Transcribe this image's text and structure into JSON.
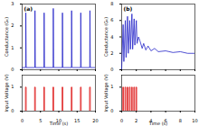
{
  "chart_data": [
    {
      "type": "line",
      "title": "(a)",
      "y_label": "Conductance (G₀)",
      "color": "#2323c8",
      "tick_labels": "y",
      "x": [
        0,
        0.95,
        1,
        1.1,
        3.45,
        3.5,
        3.6,
        5.95,
        6,
        6.1,
        8.45,
        8.5,
        8.6,
        10.95,
        11,
        11.1,
        13.45,
        13.5,
        13.6,
        15.95,
        16,
        16.1,
        18.45,
        18.5,
        18.6,
        20
      ],
      "values": [
        0.1,
        0.1,
        2.6,
        0.1,
        0.1,
        2.7,
        0.1,
        0.1,
        2.6,
        0.1,
        0.1,
        2.8,
        0.1,
        0.1,
        2.6,
        0.1,
        0.1,
        2.7,
        0.1,
        0.1,
        2.6,
        0.1,
        0.1,
        2.7,
        0.1,
        0.1
      ],
      "xlim": [
        0,
        20
      ],
      "xticks": [
        0,
        5,
        10,
        15,
        20
      ],
      "ylim": [
        0,
        3
      ],
      "yticks": [
        0,
        1,
        2,
        3
      ]
    },
    {
      "type": "line",
      "x_label": "Time (s)",
      "y_label": "Input Voltage (V)",
      "color": "#dd1111",
      "line_style": "step",
      "x": [
        0,
        0.9,
        1.1,
        3.4,
        3.6,
        5.9,
        6.1,
        8.4,
        8.6,
        10.9,
        11.1,
        13.4,
        13.6,
        15.9,
        16.1,
        18.4,
        18.6,
        20
      ],
      "values": [
        0,
        1,
        0,
        1,
        0,
        1,
        0,
        1,
        0,
        1,
        0,
        1,
        0,
        1,
        0,
        1,
        0,
        0
      ],
      "xlim": [
        0,
        20
      ],
      "xticks": [
        0,
        5,
        10,
        15,
        20
      ],
      "ylim": [
        0,
        1.5
      ],
      "yticks": [
        0,
        1
      ]
    },
    {
      "type": "line",
      "title": "(b)",
      "y_label": "Conductance (G₀)",
      "color": "#2323c8",
      "tick_labels": "y",
      "x": [
        0,
        0.2,
        0.3,
        0.5,
        0.6,
        0.8,
        0.9,
        1.1,
        1.2,
        1.4,
        1.5,
        1.7,
        1.8,
        2.0,
        2.1,
        2.3,
        2.5,
        2.8,
        3.0,
        3.3,
        3.6,
        4,
        4.5,
        5,
        6,
        7,
        8,
        9,
        10
      ],
      "values": [
        0.1,
        5.5,
        1,
        6,
        1.5,
        6.5,
        2,
        6,
        2.5,
        6.8,
        2.5,
        6.2,
        3,
        6,
        3.2,
        4,
        3.5,
        2.6,
        3.2,
        2.4,
        2.9,
        2.3,
        2.6,
        2.2,
        2.3,
        2.1,
        2.2,
        2,
        2
      ],
      "xlim": [
        0,
        10
      ],
      "xticks": [
        0,
        2,
        4,
        6,
        8,
        10
      ],
      "ylim": [
        0,
        8
      ],
      "yticks": [
        0,
        2,
        4,
        6,
        8
      ]
    },
    {
      "type": "line",
      "x_label": "Time (s)",
      "y_label": "Input Voltage (V)",
      "color": "#dd1111",
      "line_style": "step",
      "x": [
        0,
        0.15,
        0.25,
        0.45,
        0.55,
        0.75,
        0.85,
        1.05,
        1.15,
        1.35,
        1.45,
        1.65,
        1.75,
        1.95,
        2.05,
        10
      ],
      "values": [
        0,
        1,
        0,
        1,
        0,
        1,
        0,
        1,
        0,
        1,
        0,
        1,
        0,
        1,
        0,
        0
      ],
      "xlim": [
        0,
        10
      ],
      "xticks": [
        0,
        2,
        4,
        6,
        8,
        10
      ],
      "ylim": [
        0,
        1.5
      ],
      "yticks": [
        0,
        1
      ]
    }
  ]
}
